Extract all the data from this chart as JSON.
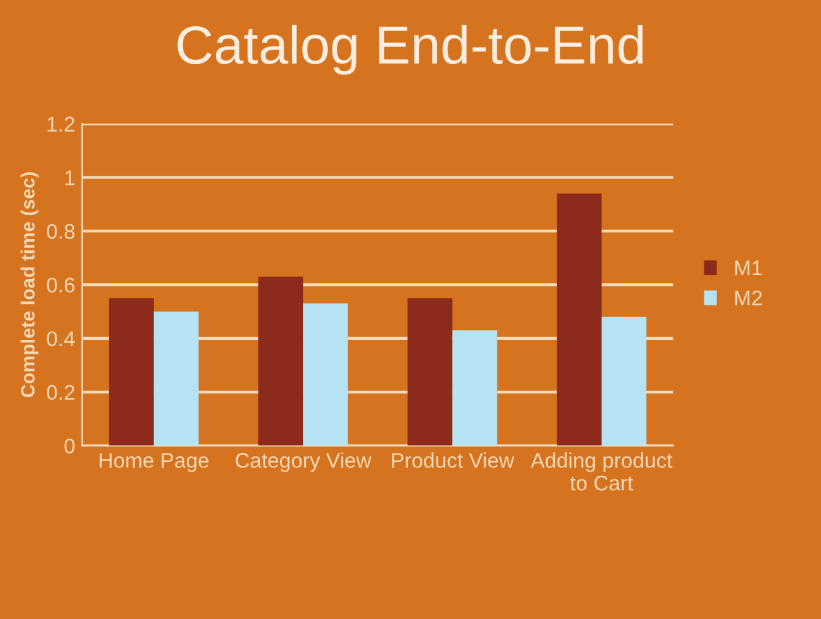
{
  "chart_data": {
    "type": "bar",
    "title": "Catalog End-to-End",
    "ylabel": "Complete load time (sec)",
    "categories": [
      "Home Page",
      "Category View",
      "Product View",
      "Adding product\nto Cart"
    ],
    "series": [
      {
        "name": "M1",
        "color": "#8c2a1c",
        "values": [
          0.55,
          0.63,
          0.55,
          0.94
        ]
      },
      {
        "name": "M2",
        "color": "#b5e3f4",
        "values": [
          0.5,
          0.53,
          0.43,
          0.48
        ]
      }
    ],
    "ylim": [
      0,
      1.2
    ],
    "yticks": [
      0,
      0.2,
      0.4,
      0.6,
      0.8,
      1,
      1.2
    ],
    "grid": "y",
    "legend": "right"
  }
}
